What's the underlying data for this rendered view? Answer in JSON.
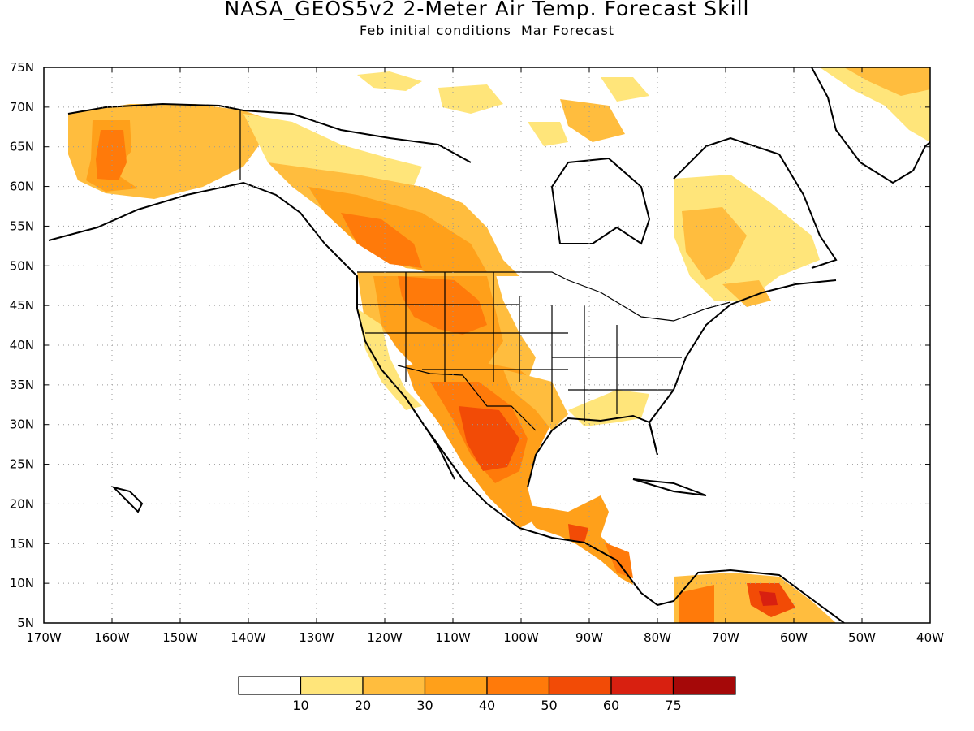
{
  "title": "NASA_GEOS5v2 2-Meter Air Temp. Forecast Skill",
  "subtitle": "Feb initial conditions  Mar Forecast",
  "map": {
    "projection": "latitude-longitude",
    "lon_range": [
      -170,
      -40
    ],
    "lat_range": [
      5,
      75
    ],
    "grid": "dotted",
    "lat_tick_labels": [
      "5N",
      "10N",
      "15N",
      "20N",
      "25N",
      "30N",
      "35N",
      "40N",
      "45N",
      "50N",
      "55N",
      "60N",
      "65N",
      "70N",
      "75N"
    ],
    "lon_tick_labels": [
      "170W",
      "160W",
      "150W",
      "140W",
      "130W",
      "120W",
      "110W",
      "100W",
      "90W",
      "80W",
      "70W",
      "60W",
      "50W",
      "40W"
    ]
  },
  "legend": {
    "colors": [
      "#ffffff",
      "#ffe57a",
      "#ffbd3e",
      "#ffa01a",
      "#ff7a0a",
      "#f24b06",
      "#d82010",
      "#a50808"
    ],
    "labels": [
      "10",
      "20",
      "30",
      "40",
      "50",
      "60",
      "75"
    ]
  }
}
